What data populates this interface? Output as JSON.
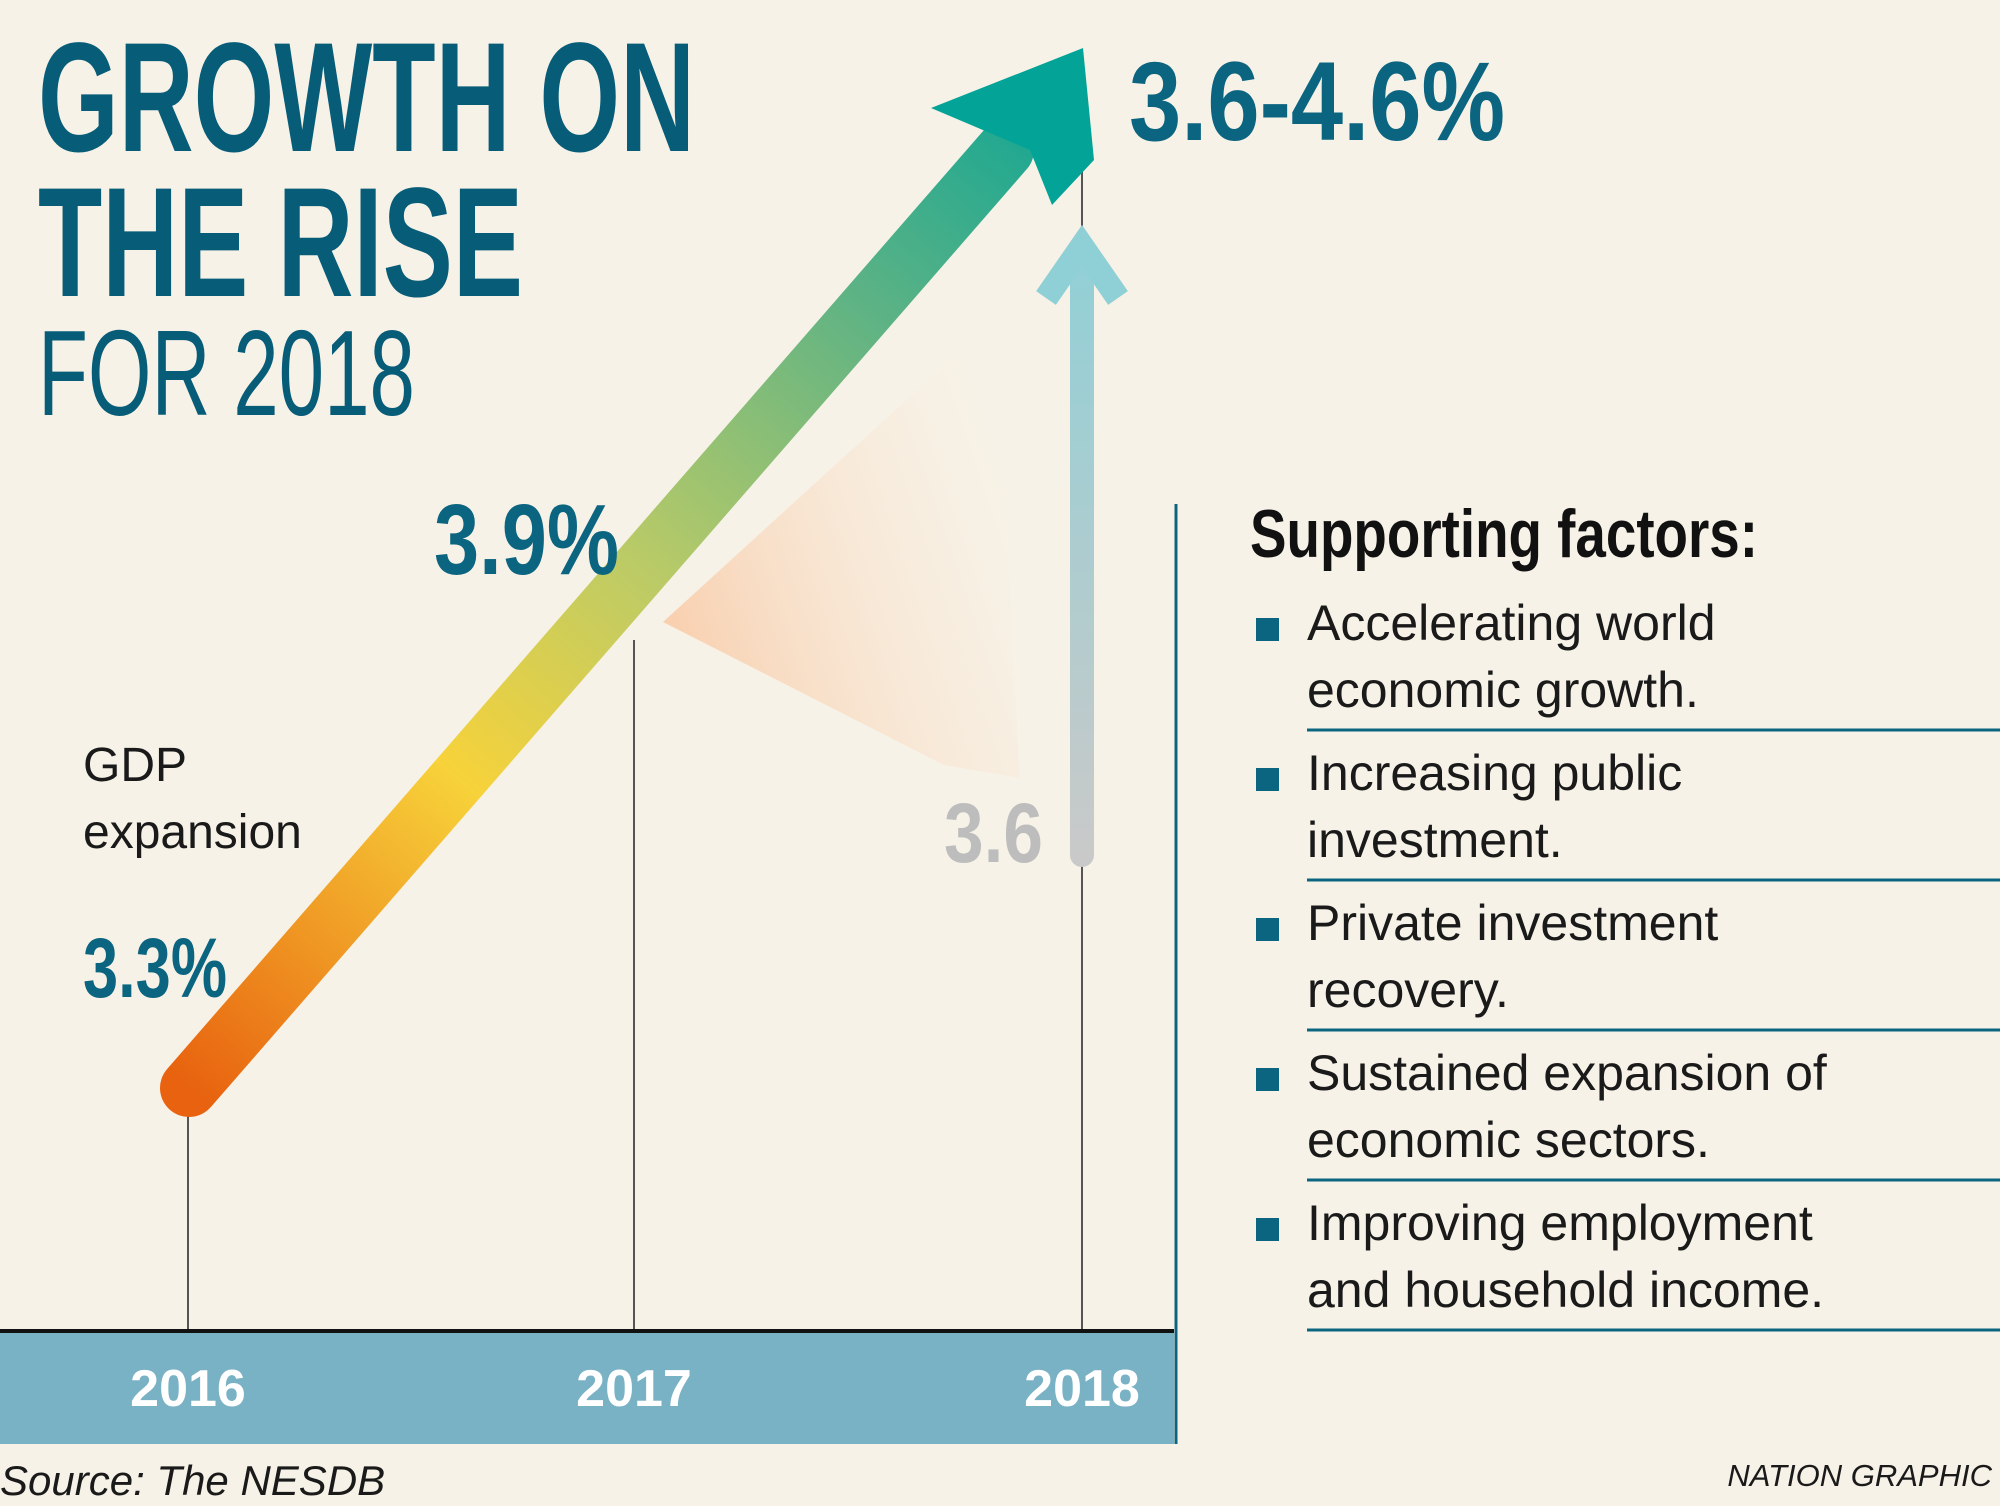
{
  "header": {
    "title_lines": [
      "GROWTH ON",
      "THE RISE"
    ],
    "subtitle": "FOR 2018"
  },
  "graphic": {
    "label_lines": [
      "GDP",
      "expansion"
    ],
    "points": [
      {
        "year": "2016",
        "value": "3.3%"
      },
      {
        "year": "2017",
        "value": "3.9%"
      },
      {
        "year": "2018",
        "value": "3.6-4.6%",
        "low": "3.6"
      }
    ]
  },
  "factors": {
    "heading": "Supporting factors:",
    "items": [
      [
        "Accelerating world",
        "economic growth."
      ],
      [
        "Increasing public",
        "investment."
      ],
      [
        "Private investment",
        "recovery."
      ],
      [
        "Sustained expansion of",
        "economic sectors."
      ],
      [
        "Improving employment",
        "and household income."
      ]
    ]
  },
  "source": "Source: The NESDB",
  "credit": "NATION GRAPHIC"
}
